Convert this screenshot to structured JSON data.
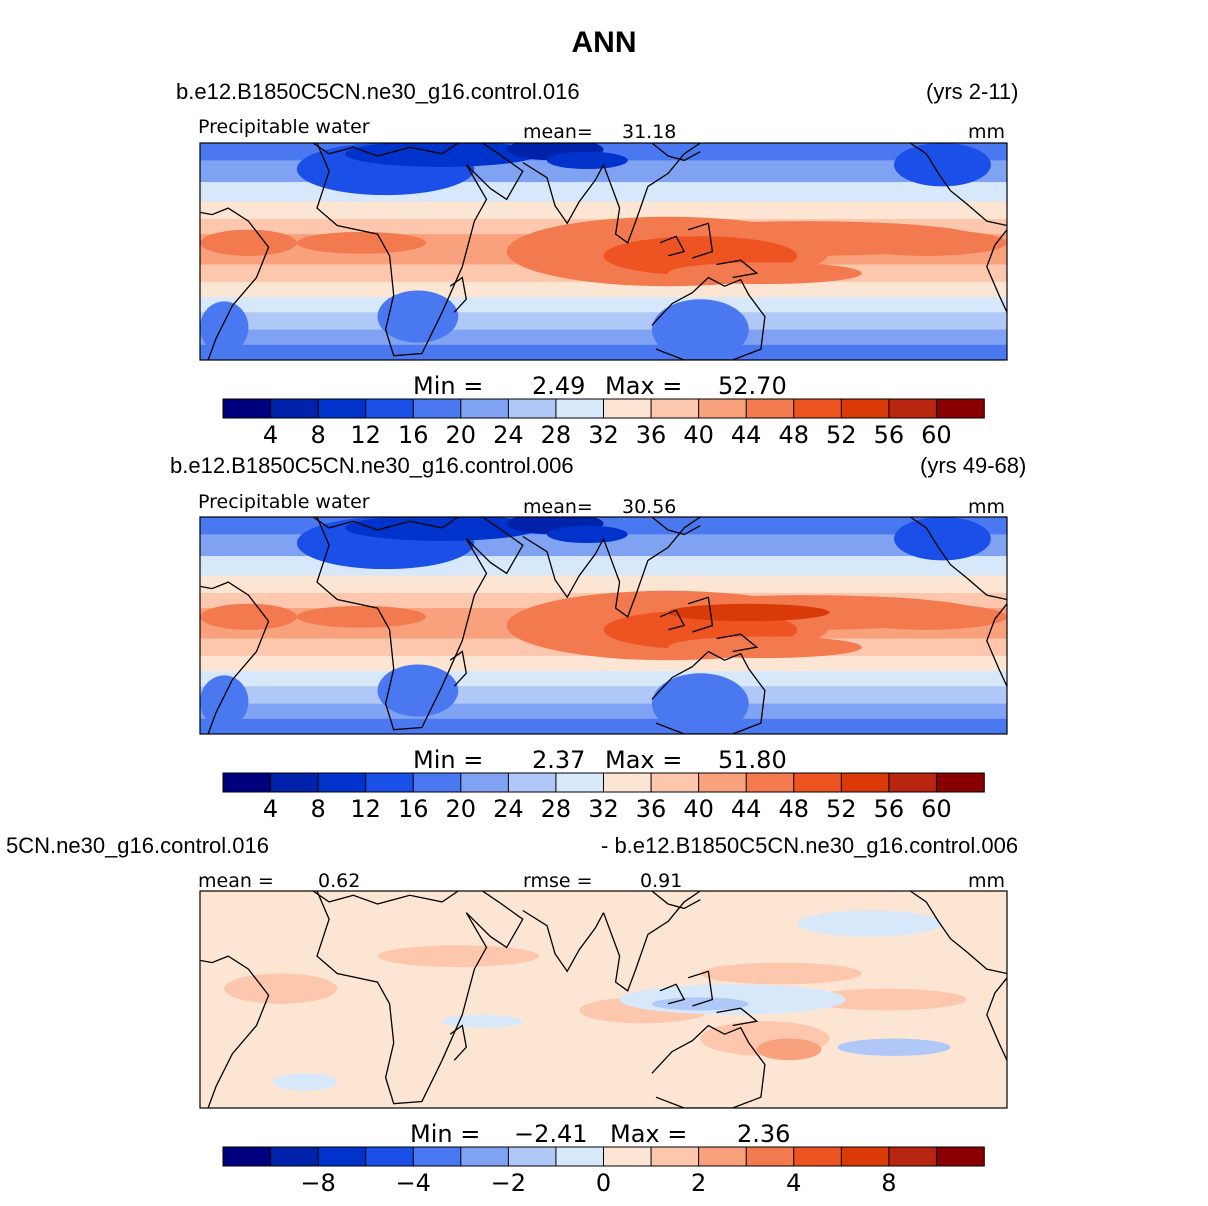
{
  "figure_title": "ANN",
  "colors": {
    "scale": [
      "#00007f",
      "#0022aa",
      "#0033cc",
      "#1a4fe8",
      "#4a78f0",
      "#7fa2f2",
      "#b0c8f7",
      "#d8e8fb",
      "#fde5d4",
      "#fcc7ad",
      "#f9a07d",
      "#f27a4e",
      "#ee5322",
      "#d93a08",
      "#b82510",
      "#8a0000"
    ],
    "land": "#000000",
    "frame": "#000000"
  },
  "chart_data": [
    {
      "type": "heatmap",
      "case_label": "b.e12.B1850C5CN.ne30_g16.control.016",
      "years_label": "(yrs 2-11)",
      "variable": "Precipitable water",
      "mean_label": "mean=",
      "mean_value": "31.18",
      "units": "mm",
      "min_label": "Min  =",
      "min_value": "2.49",
      "max_label": "Max  =",
      "max_value": "52.70",
      "min": 2.49,
      "max": 52.7,
      "mean": 31.18,
      "levels": [
        4,
        8,
        12,
        16,
        20,
        24,
        28,
        32,
        36,
        40,
        44,
        48,
        52,
        56,
        60
      ],
      "colorbar_ticks": [
        "4",
        "8",
        "12",
        "16",
        "20",
        "24",
        "28",
        "32",
        "36",
        "40",
        "44",
        "48",
        "52",
        "56",
        "60"
      ]
    },
    {
      "type": "heatmap",
      "case_label": "b.e12.B1850C5CN.ne30_g16.control.006",
      "years_label": "(yrs 49-68)",
      "variable": "Precipitable water",
      "mean_label": "mean=",
      "mean_value": "30.56",
      "units": "mm",
      "min_label": "Min  =",
      "min_value": "2.37",
      "max_label": "Max  =",
      "max_value": "51.80",
      "min": 2.37,
      "max": 51.8,
      "mean": 30.56,
      "levels": [
        4,
        8,
        12,
        16,
        20,
        24,
        28,
        32,
        36,
        40,
        44,
        48,
        52,
        56,
        60
      ],
      "colorbar_ticks": [
        "4",
        "8",
        "12",
        "16",
        "20",
        "24",
        "28",
        "32",
        "36",
        "40",
        "44",
        "48",
        "52",
        "56",
        "60"
      ]
    },
    {
      "type": "heatmap",
      "left_label": "5CN.ne30_g16.control.016",
      "right_label": "- b.e12.B1850C5CN.ne30_g16.control.006",
      "mean_label": "mean =",
      "mean_value": "0.62",
      "rmse_label": "rmse  =",
      "rmse_value": "0.91",
      "units": "mm",
      "min_label": "Min  =",
      "min_value": "−2.41",
      "max_label": "Max  =",
      "max_value": "2.36",
      "min": -2.41,
      "max": 2.36,
      "mean": 0.62,
      "rmse": 0.91,
      "colorbar_ticks": [
        "−8",
        "−4",
        "−2",
        "0",
        "2",
        "4",
        "8"
      ]
    }
  ]
}
